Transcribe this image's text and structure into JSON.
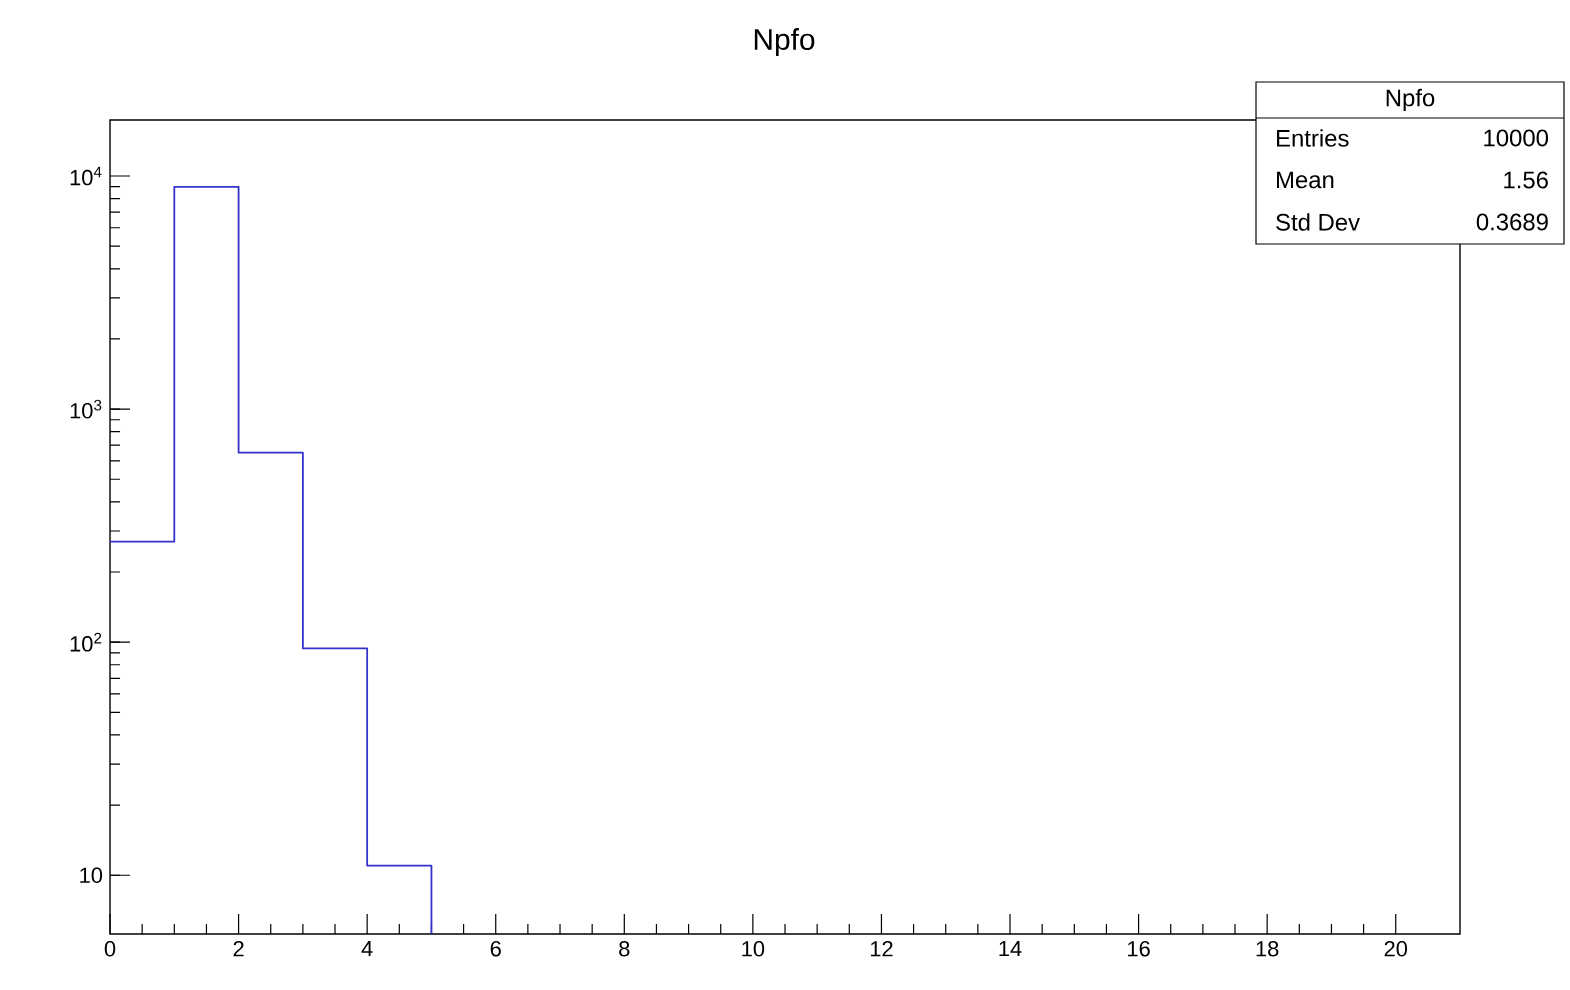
{
  "chart_data": {
    "type": "histogram",
    "title": "Npfo",
    "bins": [
      0,
      1,
      2,
      3,
      4,
      5
    ],
    "values": [
      270,
      8975,
      650,
      94,
      11
    ],
    "color": "#3333cc",
    "xlim": [
      0,
      21
    ],
    "xticks": [
      0,
      2,
      4,
      6,
      8,
      10,
      12,
      14,
      16,
      18,
      20
    ],
    "ylim": [
      5.6,
      17400
    ],
    "log": "y",
    "yticks": [
      {
        "value": 10,
        "label": "10"
      },
      {
        "value": 100,
        "label": "10$^{2}$"
      },
      {
        "value": 1000,
        "label": "10$^{3}$"
      },
      {
        "value": 10000,
        "label": "10$^{4}$"
      }
    ],
    "annotations": [
      "Npfo",
      "Entries",
      "10000",
      "Mean",
      "1.56",
      "Std Dev",
      "0.3689"
    ]
  }
}
